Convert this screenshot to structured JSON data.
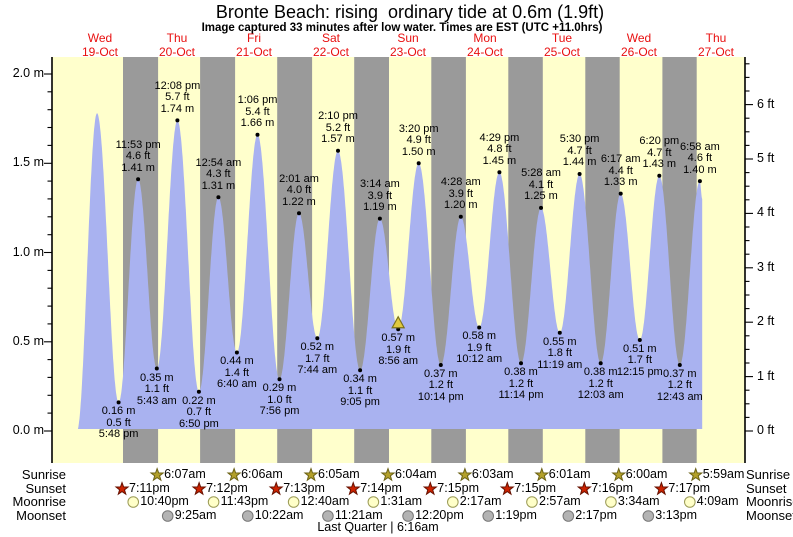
{
  "header": {
    "title": "Bronte Beach: rising  ordinary tide at 0.6m (1.9ft)",
    "subtitle": "Image captured 33 minutes after low water. Times are EST (UTC +11.0hrs)"
  },
  "days": [
    {
      "name": "Wed",
      "date": "19-Oct"
    },
    {
      "name": "Thu",
      "date": "20-Oct"
    },
    {
      "name": "Fri",
      "date": "21-Oct"
    },
    {
      "name": "Sat",
      "date": "22-Oct"
    },
    {
      "name": "Sun",
      "date": "23-Oct"
    },
    {
      "name": "Mon",
      "date": "24-Oct"
    },
    {
      "name": "Tue",
      "date": "25-Oct"
    },
    {
      "name": "Wed",
      "date": "26-Oct"
    },
    {
      "name": "Thu",
      "date": "27-Oct"
    }
  ],
  "axes": {
    "left_majors": [
      {
        "v": 2.0,
        "label": "2.0 m"
      },
      {
        "v": 1.5,
        "label": "1.5 m"
      },
      {
        "v": 1.0,
        "label": "1.0 m"
      },
      {
        "v": 0.5,
        "label": "0.5 m"
      },
      {
        "v": 0.0,
        "label": "0.0 m"
      }
    ],
    "left_minor_step_m": 0.1,
    "right_majors": [
      {
        "v": 6,
        "label": "6 ft"
      },
      {
        "v": 5,
        "label": "5 ft"
      },
      {
        "v": 4,
        "label": "4 ft"
      },
      {
        "v": 3,
        "label": "3 ft"
      },
      {
        "v": 2,
        "label": "2 ft"
      },
      {
        "v": 1,
        "label": "1 ft"
      },
      {
        "v": 0,
        "label": "0 ft"
      }
    ],
    "right_minor_step_ft": 0.25
  },
  "colors": {
    "day_band": "#ffffcc",
    "night_band": "#9a9a9a",
    "water": "#a9b2f0",
    "day_label": "#e81010",
    "sunrise_star": "#b3a02a",
    "sunset_star": "#cc2200",
    "moonrise_fill": "#ffffc8",
    "moonset_fill": "#b3b3b3",
    "marker_fill": "#e0c93e"
  },
  "chart_data": {
    "type": "area",
    "title": "Bronte Beach tide heights, Wed 19-Oct to Thu 27-Oct",
    "x_unit": "hours since Wed 19-Oct 00:00 (EST UTC+11.0)",
    "ylabel_left": "metres",
    "ylabel_right": "feet",
    "ylim_m": [
      0.0,
      2.1
    ],
    "xlim_hours": [
      -2.96,
      213.04
    ],
    "grid": false,
    "night_bands_hours": [
      [
        19.183,
        30.117
      ],
      [
        43.2,
        54.1
      ],
      [
        67.217,
        78.083
      ],
      [
        91.233,
        102.067
      ],
      [
        115.25,
        126.05
      ],
      [
        139.25,
        150.017
      ],
      [
        163.267,
        174.0
      ],
      [
        187.283,
        197.983
      ]
    ],
    "tide_events": [
      {
        "kind": "start",
        "h": 4.8,
        "m": 0.0,
        "labeled": false,
        "label_lines": []
      },
      {
        "kind": "high",
        "h": 11.07,
        "m": 1.78,
        "labeled": false,
        "label_lines": []
      },
      {
        "kind": "low",
        "h": 17.8,
        "m": 0.16,
        "labeled": true,
        "label_lines": [
          "0.16 m",
          "0.5 ft",
          "5:48 pm"
        ]
      },
      {
        "kind": "high",
        "h": 23.883,
        "m": 1.41,
        "labeled": true,
        "label_lines": [
          "11:53 pm",
          "4.6 ft",
          "1.41 m"
        ]
      },
      {
        "kind": "low",
        "h": 29.717,
        "m": 0.35,
        "labeled": true,
        "label_lines": [
          "0.35 m",
          "1.1 ft",
          "5:43 am"
        ]
      },
      {
        "kind": "high",
        "h": 36.133,
        "m": 1.74,
        "labeled": true,
        "label_lines": [
          "12:08 pm",
          "5.7 ft",
          "1.74 m"
        ]
      },
      {
        "kind": "low",
        "h": 42.833,
        "m": 0.22,
        "labeled": true,
        "label_lines": [
          "0.22 m",
          "0.7 ft",
          "6:50 pm"
        ]
      },
      {
        "kind": "high",
        "h": 48.9,
        "m": 1.31,
        "labeled": true,
        "label_lines": [
          "12:54 am",
          "4.3 ft",
          "1.31 m"
        ]
      },
      {
        "kind": "low",
        "h": 54.667,
        "m": 0.44,
        "labeled": true,
        "label_lines": [
          "0.44 m",
          "1.4 ft",
          "6:40 am"
        ]
      },
      {
        "kind": "high",
        "h": 61.1,
        "m": 1.66,
        "labeled": true,
        "label_lines": [
          "1:06 pm",
          "5.4 ft",
          "1.66 m"
        ]
      },
      {
        "kind": "low",
        "h": 67.933,
        "m": 0.29,
        "labeled": true,
        "label_lines": [
          "0.29 m",
          "1.0 ft",
          "7:56 pm"
        ]
      },
      {
        "kind": "high",
        "h": 74.017,
        "m": 1.22,
        "labeled": true,
        "label_lines": [
          "2:01 am",
          "4.0 ft",
          "1.22 m"
        ]
      },
      {
        "kind": "low",
        "h": 79.733,
        "m": 0.52,
        "labeled": true,
        "label_lines": [
          "0.52 m",
          "1.7 ft",
          "7:44 am"
        ]
      },
      {
        "kind": "high",
        "h": 86.167,
        "m": 1.57,
        "labeled": true,
        "label_lines": [
          "2:10 pm",
          "5.2 ft",
          "1.57 m"
        ]
      },
      {
        "kind": "low",
        "h": 93.083,
        "m": 0.34,
        "labeled": true,
        "label_lines": [
          "0.34 m",
          "1.1 ft",
          "9:05 pm"
        ]
      },
      {
        "kind": "high",
        "h": 99.233,
        "m": 1.19,
        "labeled": true,
        "label_lines": [
          "3:14 am",
          "3.9 ft",
          "1.19 m"
        ]
      },
      {
        "kind": "low",
        "h": 104.933,
        "m": 0.57,
        "labeled": true,
        "current": true,
        "label_lines": [
          "0.57 m",
          "1.9 ft",
          "8:56 am"
        ]
      },
      {
        "kind": "high",
        "h": 111.333,
        "m": 1.5,
        "labeled": true,
        "label_lines": [
          "3:20 pm",
          "4.9 ft",
          "1.50 m"
        ]
      },
      {
        "kind": "low",
        "h": 118.233,
        "m": 0.37,
        "labeled": true,
        "label_lines": [
          "0.37 m",
          "1.2 ft",
          "10:14 pm"
        ]
      },
      {
        "kind": "high",
        "h": 124.467,
        "m": 1.2,
        "labeled": true,
        "label_lines": [
          "4:28 am",
          "3.9 ft",
          "1.20 m"
        ]
      },
      {
        "kind": "low",
        "h": 130.2,
        "m": 0.58,
        "labeled": true,
        "label_lines": [
          "0.58 m",
          "1.9 ft",
          "10:12 am"
        ]
      },
      {
        "kind": "high",
        "h": 136.483,
        "m": 1.45,
        "labeled": true,
        "label_lines": [
          "4:29 pm",
          "4.8 ft",
          "1.45 m"
        ]
      },
      {
        "kind": "low",
        "h": 143.233,
        "m": 0.38,
        "labeled": true,
        "label_lines": [
          "0.38 m",
          "1.2 ft",
          "11:14 pm"
        ]
      },
      {
        "kind": "high",
        "h": 149.467,
        "m": 1.25,
        "labeled": true,
        "label_lines": [
          "5:28 am",
          "4.1 ft",
          "1.25 m"
        ]
      },
      {
        "kind": "low",
        "h": 155.317,
        "m": 0.55,
        "labeled": true,
        "label_lines": [
          "0.55 m",
          "1.8 ft",
          "11:19 am"
        ]
      },
      {
        "kind": "high",
        "h": 161.5,
        "m": 1.44,
        "labeled": true,
        "label_lines": [
          "5:30 pm",
          "4.7 ft",
          "1.44 m"
        ]
      },
      {
        "kind": "low",
        "h": 168.05,
        "m": 0.38,
        "labeled": true,
        "label_lines": [
          "0.38 m",
          "1.2 ft",
          "12:03 am"
        ]
      },
      {
        "kind": "high",
        "h": 174.283,
        "m": 1.33,
        "labeled": true,
        "label_lines": [
          "6:17 am",
          "4.4 ft",
          "1.33 m"
        ]
      },
      {
        "kind": "low",
        "h": 180.25,
        "m": 0.51,
        "labeled": true,
        "label_lines": [
          "0.51 m",
          "1.7 ft",
          "12:15 pm"
        ]
      },
      {
        "kind": "high",
        "h": 186.333,
        "m": 1.43,
        "labeled": true,
        "label_lines": [
          "6:20 pm",
          "4.7 ft",
          "1.43 m"
        ]
      },
      {
        "kind": "low",
        "h": 192.717,
        "m": 0.37,
        "labeled": true,
        "label_lines": [
          "0.37 m",
          "1.2 ft",
          "12:43 am"
        ]
      },
      {
        "kind": "high",
        "h": 198.967,
        "m": 1.4,
        "labeled": true,
        "label_lines": [
          "6:58 am",
          "4.6 ft",
          "1.40 m"
        ]
      },
      {
        "kind": "end",
        "h": 199.7,
        "m": 1.3,
        "labeled": false,
        "label_lines": []
      }
    ]
  },
  "astro": {
    "left_labels": [
      "Sunrise",
      "Sunset",
      "Moonrise",
      "Moonset"
    ],
    "right_labels": [
      "Sunrise",
      "Sunset",
      "Moonrise",
      "Moonset"
    ],
    "rows": [
      {
        "name": "sunrise",
        "icon": "sunrise-star-icon",
        "events": [
          {
            "h": 30.117,
            "time": "6:07am"
          },
          {
            "h": 54.1,
            "time": "6:06am"
          },
          {
            "h": 78.083,
            "time": "6:05am"
          },
          {
            "h": 102.067,
            "time": "6:04am"
          },
          {
            "h": 126.05,
            "time": "6:03am"
          },
          {
            "h": 150.017,
            "time": "6:01am"
          },
          {
            "h": 174.0,
            "time": "6:00am"
          },
          {
            "h": 197.983,
            "time": "5:59am"
          }
        ]
      },
      {
        "name": "sunset",
        "icon": "sunset-star-icon",
        "events": [
          {
            "h": 19.183,
            "time": "7:11pm"
          },
          {
            "h": 43.2,
            "time": "7:12pm"
          },
          {
            "h": 67.217,
            "time": "7:13pm"
          },
          {
            "h": 91.233,
            "time": "7:14pm"
          },
          {
            "h": 115.25,
            "time": "7:15pm"
          },
          {
            "h": 139.25,
            "time": "7:15pm"
          },
          {
            "h": 163.267,
            "time": "7:16pm"
          },
          {
            "h": 187.283,
            "time": "7:17pm"
          }
        ]
      },
      {
        "name": "moonrise",
        "icon": "moonrise-circle-icon",
        "events": [
          {
            "h": 22.667,
            "time": "10:40pm"
          },
          {
            "h": 47.717,
            "time": "11:43pm"
          },
          {
            "h": 72.667,
            "time": "12:40am"
          },
          {
            "h": 97.517,
            "time": "1:31am"
          },
          {
            "h": 122.283,
            "time": "2:17am"
          },
          {
            "h": 146.95,
            "time": "2:57am"
          },
          {
            "h": 171.567,
            "time": "3:34am"
          },
          {
            "h": 196.15,
            "time": "4:09am"
          }
        ]
      },
      {
        "name": "moonset",
        "icon": "moonset-circle-icon",
        "events": [
          {
            "h": 33.417,
            "time": "9:25am"
          },
          {
            "h": 58.367,
            "time": "10:22am"
          },
          {
            "h": 83.35,
            "time": "11:21am"
          },
          {
            "h": 108.333,
            "time": "12:20pm"
          },
          {
            "h": 133.317,
            "time": "1:19pm"
          },
          {
            "h": 158.283,
            "time": "2:17pm"
          },
          {
            "h": 183.217,
            "time": "3:13pm"
          }
        ]
      }
    ],
    "footer": "Last Quarter | 6:16am"
  }
}
